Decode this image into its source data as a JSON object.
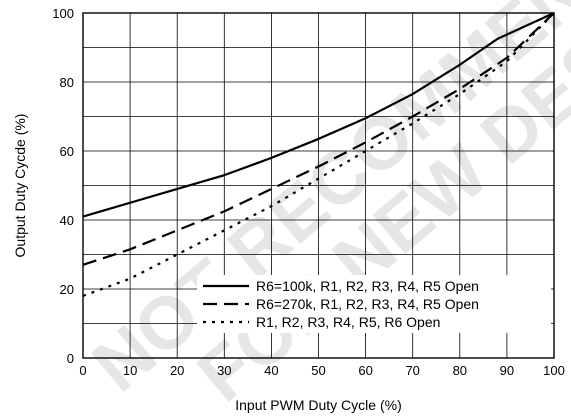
{
  "watermark": {
    "line1": "NOT RECOMMENDED",
    "line2": "FOR NEW DESIGN"
  },
  "chart_data": {
    "type": "line",
    "title": "",
    "xlabel": "Input PWM Duty Cycle (%)",
    "ylabel": "Output Duty Cycde (%)",
    "xlim": [
      0,
      100
    ],
    "ylim": [
      0,
      100
    ],
    "xticks": [
      0,
      10,
      20,
      30,
      40,
      50,
      60,
      70,
      80,
      90,
      100
    ],
    "yticks": [
      0,
      20,
      40,
      60,
      80,
      100
    ],
    "grid": true,
    "legend_position": "bottom-right",
    "series": [
      {
        "name": "R6=100k, R1, R2, R3, R4, R5 Open",
        "style": "solid",
        "color": "#000000",
        "x": [
          0,
          10,
          20,
          30,
          40,
          50,
          60,
          70,
          80,
          88,
          100
        ],
        "y": [
          41,
          45,
          49,
          53,
          58,
          63.5,
          69.5,
          76.5,
          85,
          92.5,
          100
        ]
      },
      {
        "name": "R6=270k, R1, R2, R3, R4, R5 Open",
        "style": "dashed",
        "color": "#000000",
        "x": [
          0,
          10,
          20,
          30,
          40,
          50,
          60,
          70,
          80,
          90,
          100
        ],
        "y": [
          27,
          31.5,
          37,
          42.5,
          49,
          55.5,
          62.5,
          70,
          78,
          87,
          100
        ]
      },
      {
        "name": "R1, R2, R3, R4, R5, R6 Open",
        "style": "dotted",
        "color": "#000000",
        "x": [
          0,
          10,
          20,
          30,
          40,
          50,
          60,
          70,
          80,
          90,
          100
        ],
        "y": [
          18,
          23,
          30,
          37,
          44,
          52,
          60,
          68,
          76.5,
          86,
          100
        ]
      }
    ]
  }
}
